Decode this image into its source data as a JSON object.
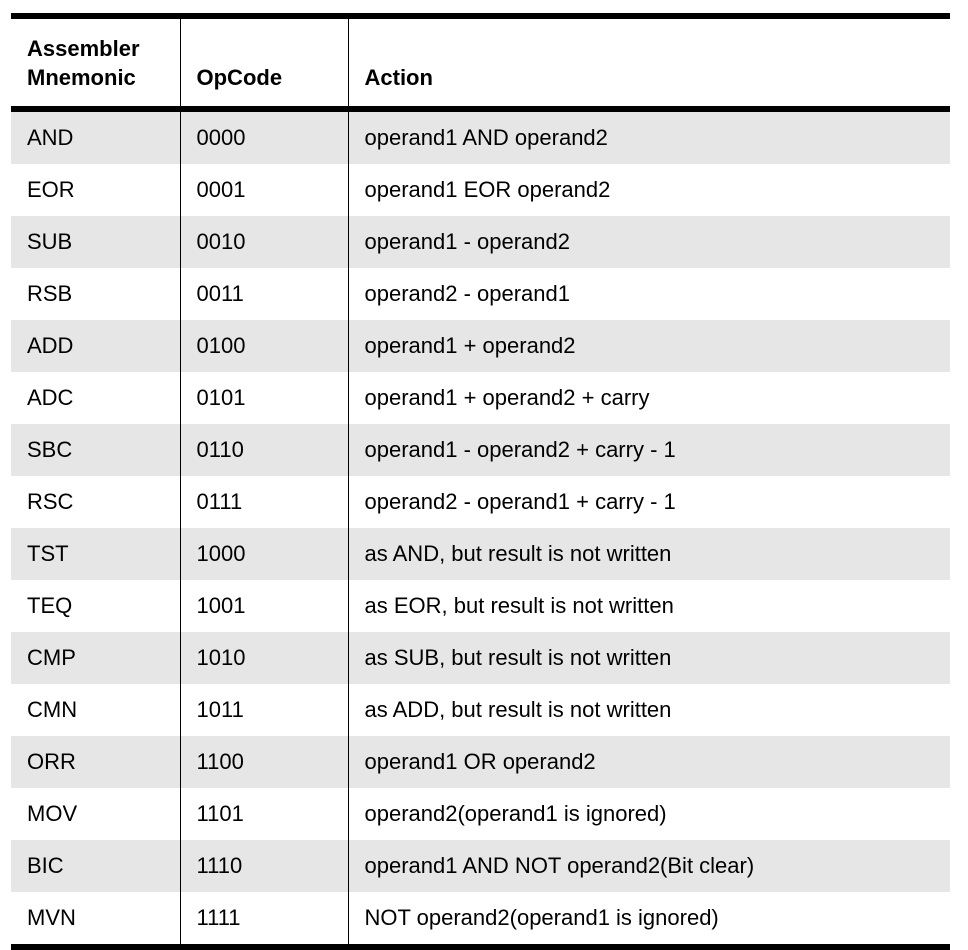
{
  "table": {
    "headers": {
      "mnemonic_line1": "Assembler",
      "mnemonic_line2": "Mnemonic",
      "opcode": "OpCode",
      "action": "Action"
    },
    "rows": [
      {
        "mnemonic": "AND",
        "opcode": "0000",
        "action": "operand1 AND operand2"
      },
      {
        "mnemonic": "EOR",
        "opcode": "0001",
        "action": "operand1 EOR operand2"
      },
      {
        "mnemonic": "SUB",
        "opcode": "0010",
        "action": "operand1 - operand2"
      },
      {
        "mnemonic": "RSB",
        "opcode": "0011",
        "action": "operand2 - operand1"
      },
      {
        "mnemonic": "ADD",
        "opcode": "0100",
        "action": "operand1 + operand2"
      },
      {
        "mnemonic": "ADC",
        "opcode": "0101",
        "action": "operand1 + operand2 + carry"
      },
      {
        "mnemonic": "SBC",
        "opcode": "0110",
        "action": "operand1 - operand2 + carry - 1"
      },
      {
        "mnemonic": "RSC",
        "opcode": "0111",
        "action": "operand2 - operand1 + carry - 1"
      },
      {
        "mnemonic": "TST",
        "opcode": "1000",
        "action": "as AND, but result is not written"
      },
      {
        "mnemonic": "TEQ",
        "opcode": "1001",
        "action": "as EOR, but result is not written"
      },
      {
        "mnemonic": "CMP",
        "opcode": "1010",
        "action": "as SUB, but result is not written"
      },
      {
        "mnemonic": "CMN",
        "opcode": "1011",
        "action": "as ADD, but result is not written"
      },
      {
        "mnemonic": "ORR",
        "opcode": "1100",
        "action": "operand1 OR operand2"
      },
      {
        "mnemonic": "MOV",
        "opcode": "1101",
        "action": "operand2(operand1 is ignored)"
      },
      {
        "mnemonic": "BIC",
        "opcode": "1110",
        "action": "operand1 AND NOT operand2(Bit clear)"
      },
      {
        "mnemonic": "MVN",
        "opcode": "1111",
        "action": "NOT operand2(operand1 is ignored)"
      }
    ]
  },
  "colors": {
    "row_shade": "#e6e6e6",
    "row_plain": "#ffffff",
    "rule": "#000000"
  }
}
